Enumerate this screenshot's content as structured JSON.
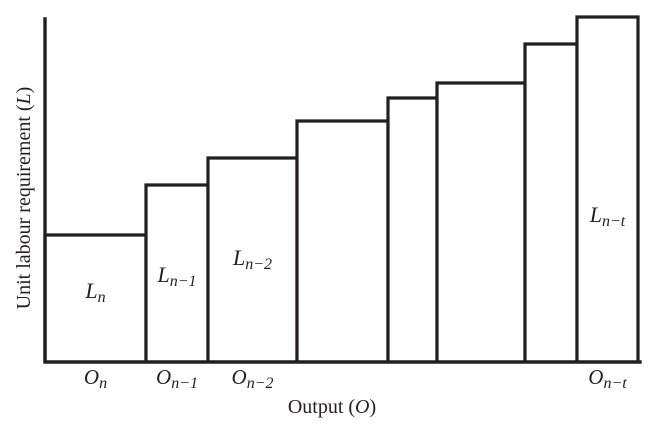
{
  "y_axis_label": {
    "text": "Unit labour requirement (",
    "var": "L",
    "close": ")"
  },
  "x_axis_label": {
    "text": "Output (",
    "var": "O",
    "close": ")"
  },
  "bars": [
    {
      "step": 1,
      "height_rank": 1,
      "width_rank": 4,
      "bar_label": {
        "base": "L",
        "sub": "n"
      },
      "tick_label": {
        "base": "O",
        "sub": "n"
      }
    },
    {
      "step": 2,
      "height_rank": 2,
      "width_rank": 2,
      "bar_label": {
        "base": "L",
        "sub": "n−1"
      },
      "tick_label": {
        "base": "O",
        "sub": "n−1"
      }
    },
    {
      "step": 3,
      "height_rank": 3,
      "width_rank": 3,
      "bar_label": {
        "base": "L",
        "sub": "n−2"
      },
      "tick_label": {
        "base": "O",
        "sub": "n−2"
      }
    },
    {
      "step": 4,
      "height_rank": 4,
      "width_rank": 3,
      "bar_label": null,
      "tick_label": null
    },
    {
      "step": 5,
      "height_rank": 5,
      "width_rank": 1,
      "bar_label": null,
      "tick_label": null
    },
    {
      "step": 6,
      "height_rank": 6,
      "width_rank": 3,
      "bar_label": null,
      "tick_label": null
    },
    {
      "step": 7,
      "height_rank": 7,
      "width_rank": 2,
      "bar_label": null,
      "tick_label": null
    },
    {
      "step": 8,
      "height_rank": 8,
      "width_rank": 2,
      "bar_label": {
        "base": "L",
        "sub": "n−t"
      },
      "tick_label": {
        "base": "O",
        "sub": "n−t"
      }
    }
  ],
  "colors": {
    "ink": "#231f20",
    "background": "#ffffff"
  }
}
